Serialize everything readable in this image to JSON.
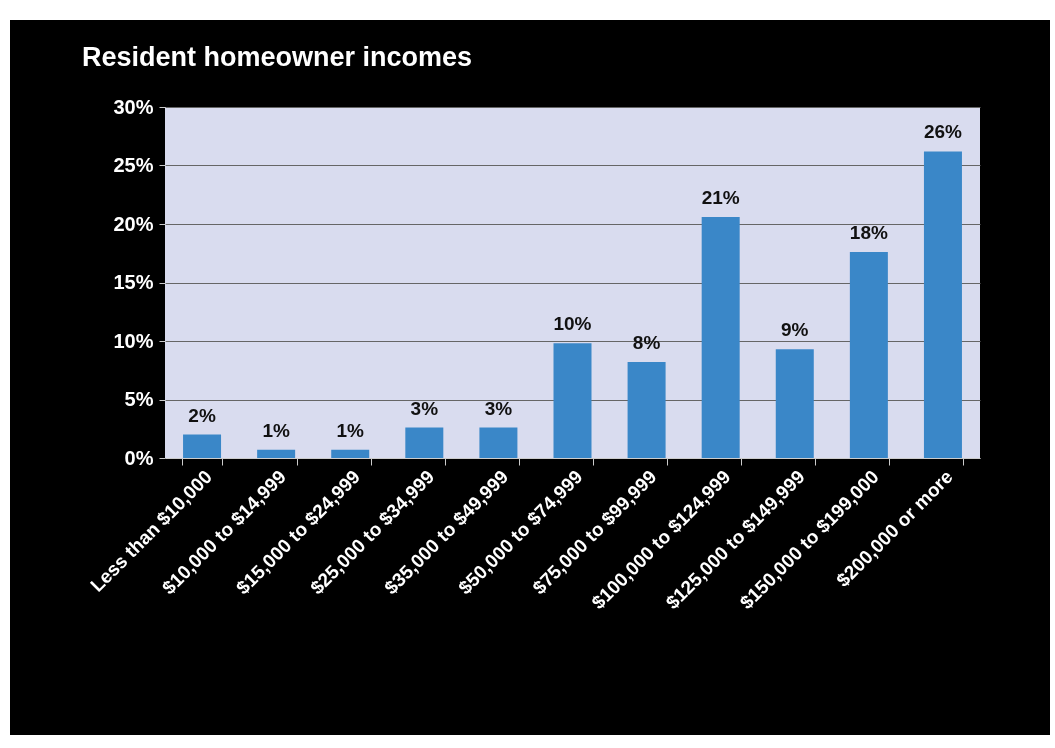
{
  "chart_data": {
    "type": "bar",
    "title": "Resident homeowner incomes",
    "categories": [
      "Less than $10,000",
      "$10,000 to $14,999",
      "$15,000 to $24,999",
      "$25,000 to $34,999",
      "$35,000 to $49,999",
      "$50,000 to $74,999",
      "$75,000 to $99,999",
      "$100,000 to $124,999",
      "$125,000 to $149,999",
      "$150,000 to $199,000",
      "$200,000 or more"
    ],
    "values": [
      2.0,
      0.7,
      0.7,
      2.6,
      2.6,
      9.8,
      8.2,
      20.6,
      9.3,
      17.6,
      26.2
    ],
    "value_labels": [
      "2%",
      "1%",
      "1%",
      "3%",
      "3%",
      "10%",
      "8%",
      "21%",
      "9%",
      "18%",
      "26%"
    ],
    "color": "#3a87c8",
    "ylim": [
      0,
      30
    ],
    "yticks": [
      {
        "value": 0,
        "label": "0%"
      },
      {
        "value": 5,
        "label": "5%"
      },
      {
        "value": 10,
        "label": "10%"
      },
      {
        "value": 15,
        "label": "15%"
      },
      {
        "value": 20,
        "label": "20%"
      },
      {
        "value": 25,
        "label": "25%"
      },
      {
        "value": 30,
        "label": "30%"
      }
    ],
    "grid": "y"
  }
}
